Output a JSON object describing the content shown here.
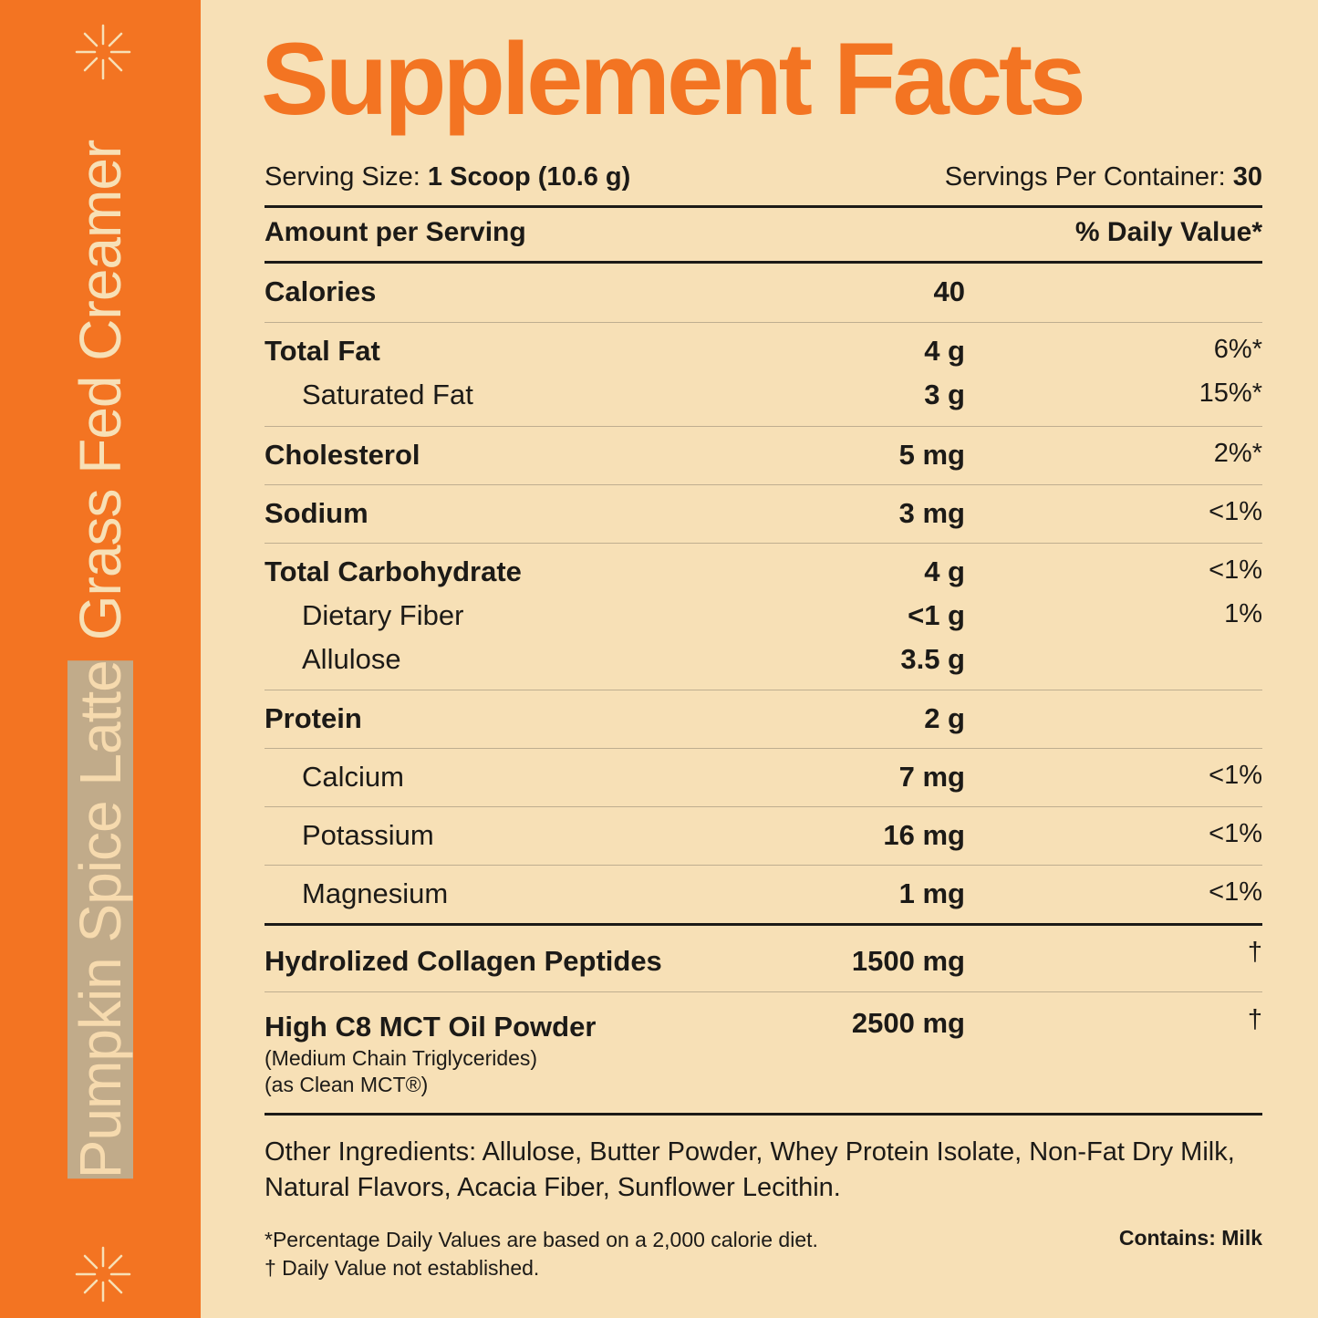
{
  "sidebar": {
    "flavor": "Pumpkin Spice Latte",
    "product": "Grass Fed Creamer",
    "icon": "sparkle-icon"
  },
  "title": "Supplement Facts",
  "serving": {
    "size_label": "Serving Size:",
    "size_value": "1 Scoop (10.6 g)",
    "per_container_label": "Servings Per Container:",
    "per_container_value": "30"
  },
  "header": {
    "amount": "Amount per Serving",
    "dv": "% Daily Value*"
  },
  "nutrients": {
    "calories": {
      "label": "Calories",
      "amount": "40",
      "dv": ""
    },
    "total_fat": {
      "label": "Total Fat",
      "amount": "4 g",
      "dv": "6%*"
    },
    "saturated_fat": {
      "label": "Saturated Fat",
      "amount": "3 g",
      "dv": "15%*"
    },
    "cholesterol": {
      "label": "Cholesterol",
      "amount": "5 mg",
      "dv": "2%*"
    },
    "sodium": {
      "label": "Sodium",
      "amount": "3 mg",
      "dv": "<1%"
    },
    "total_carb": {
      "label": "Total Carbohydrate",
      "amount": "4 g",
      "dv": "<1%"
    },
    "dietary_fiber": {
      "label": "Dietary Fiber",
      "amount": "<1 g",
      "dv": "1%"
    },
    "allulose": {
      "label": "Allulose",
      "amount": "3.5 g",
      "dv": ""
    },
    "protein": {
      "label": "Protein",
      "amount": "2 g",
      "dv": ""
    },
    "calcium": {
      "label": "Calcium",
      "amount": "7 mg",
      "dv": "<1%"
    },
    "potassium": {
      "label": "Potassium",
      "amount": "16 mg",
      "dv": "<1%"
    },
    "magnesium": {
      "label": "Magnesium",
      "amount": "1 mg",
      "dv": "<1%"
    },
    "collagen": {
      "label": "Hydrolized Collagen Peptides",
      "amount": "1500 mg",
      "dv": "†"
    },
    "mct": {
      "label": "High C8 MCT Oil Powder",
      "sub1": "(Medium Chain Triglycerides)",
      "sub2": "(as Clean MCT®)",
      "amount": "2500 mg",
      "dv": "†"
    }
  },
  "other_ingredients": "Other Ingredients: Allulose, Butter Powder, Whey Protein Isolate, Non-Fat Dry Milk, Natural Flavors, Acacia Fiber, Sunflower Lecithin.",
  "footnotes": {
    "line1": "*Percentage Daily Values are based on a 2,000 calorie diet.",
    "line2": "† Daily Value not established."
  },
  "contains": "Contains: Milk",
  "colors": {
    "accent": "#f37422",
    "background": "#f7e0b6",
    "text": "#1c1a17"
  }
}
